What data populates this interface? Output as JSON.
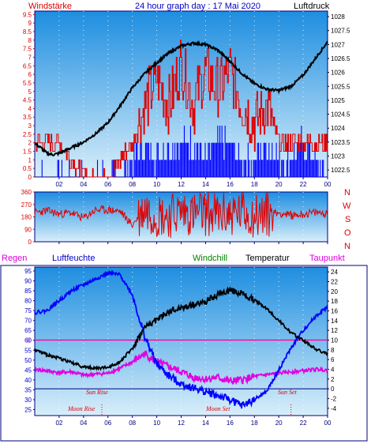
{
  "header": {
    "left_label": "Windstärke",
    "title": "24 hour graph day : 17 Mai 2020",
    "right_label": "Luftdruck"
  },
  "compass": [
    "N",
    "W",
    "S",
    "O",
    "N"
  ],
  "bottom_header": {
    "regen": "Regen",
    "luftfeuchte": "Luftfeuchte",
    "windchill": "Windchill",
    "temperatur": "Temperatur",
    "taupunkt": "Taupunkt"
  },
  "annotations": {
    "sun_rise": "Sun Rise",
    "sun_set": "Sun Set",
    "moon_rise": "Moon Rise",
    "moon_set": "Moon Set"
  },
  "chart_data": [
    {
      "type": "line",
      "x_ticks": [
        "02",
        "04",
        "06",
        "08",
        "10",
        "12",
        "14",
        "16",
        "18",
        "20",
        "22",
        "00"
      ],
      "left_axis": {
        "ticks": [
          "0",
          "0.5",
          "1",
          "1.5",
          "2",
          "2.5",
          "3",
          "3.5",
          "4",
          "4.5",
          "5",
          "5.5",
          "6",
          "6.5",
          "7",
          "7.5",
          "8",
          "8.5",
          "9",
          "9.5"
        ],
        "ylim": [
          0,
          9.7
        ]
      },
      "right_axis": {
        "ticks": [
          "1022.5",
          "1023",
          "1023.5",
          "1024",
          "1024.5",
          "1025",
          "1025.5",
          "1026",
          "1026.5",
          "1027",
          "1027.5",
          "1028"
        ],
        "ylim": [
          1022.25,
          1028.2
        ]
      },
      "series": [
        {
          "color": "#000000",
          "axis": "right",
          "x": [
            0,
            0.5,
            1,
            1.5,
            2,
            3,
            4,
            5,
            6,
            7,
            8,
            9,
            10,
            11,
            12,
            13,
            14,
            15,
            16,
            17,
            18,
            19,
            20,
            21,
            22,
            23,
            24
          ],
          "values": [
            1023.45,
            1023.3,
            1023.1,
            1023.05,
            1023.1,
            1023.3,
            1023.5,
            1023.8,
            1024.2,
            1024.8,
            1025.45,
            1025.95,
            1026.35,
            1026.7,
            1026.95,
            1027.05,
            1027.0,
            1026.8,
            1026.4,
            1025.95,
            1025.6,
            1025.4,
            1025.35,
            1025.5,
            1025.9,
            1026.5,
            1027.1
          ]
        },
        {
          "color": "#e00000",
          "axis": "left",
          "x": [
            0,
            2,
            4,
            6,
            8,
            9,
            10,
            11,
            12,
            13,
            14,
            15,
            16,
            17,
            18,
            19,
            20,
            21,
            22,
            23,
            24
          ],
          "values": [
            2,
            2,
            0,
            0,
            2,
            4,
            5.5,
            4,
            6.5,
            4,
            6,
            5,
            6,
            4,
            3,
            4,
            2,
            2,
            2,
            2,
            2
          ]
        },
        {
          "color": "#0000ff",
          "axis": "left",
          "x": [
            0,
            7,
            8,
            9,
            10,
            11,
            12,
            13,
            14,
            15,
            16,
            17,
            18,
            19,
            20,
            21,
            22,
            23,
            24
          ],
          "values": [
            0,
            0,
            1,
            2,
            1,
            2,
            2,
            2,
            1,
            2,
            2,
            1,
            1,
            2,
            1,
            1,
            2,
            1,
            0
          ]
        }
      ]
    },
    {
      "type": "line",
      "x_ticks": [
        "02",
        "04",
        "06",
        "08",
        "10",
        "12",
        "14",
        "16",
        "18",
        "20",
        "22",
        "00"
      ],
      "left_axis": {
        "ticks": [
          "0",
          "90",
          "180",
          "270",
          "360"
        ],
        "ylim": [
          0,
          360
        ]
      },
      "series": [
        {
          "color": "#e00000",
          "x": [
            0,
            1,
            2,
            3,
            4,
            5,
            6,
            7,
            8,
            9,
            10,
            11,
            12,
            13,
            14,
            15,
            16,
            17,
            18,
            19,
            20,
            21,
            22,
            23,
            24
          ],
          "values": [
            210,
            225,
            200,
            210,
            170,
            230,
            230,
            220,
            120,
            240,
            200,
            190,
            220,
            200,
            210,
            190,
            200,
            215,
            190,
            200,
            210,
            190,
            200,
            210,
            205
          ]
        }
      ]
    },
    {
      "type": "line",
      "x_ticks": [
        "02",
        "04",
        "06",
        "08",
        "10",
        "12",
        "14",
        "16",
        "18",
        "20",
        "22",
        "00"
      ],
      "left_axis": {
        "ticks": [
          "25",
          "30",
          "35",
          "40",
          "45",
          "50",
          "55",
          "60",
          "65",
          "70",
          "75",
          "80",
          "85",
          "90",
          "95"
        ],
        "ylim": [
          22,
          97
        ]
      },
      "right_axis": {
        "ticks": [
          "-4",
          "-2",
          "0",
          "2",
          "4",
          "6",
          "8",
          "10",
          "12",
          "14",
          "16",
          "18",
          "20",
          "22",
          "24"
        ],
        "ylim": [
          -5.5,
          25
        ]
      },
      "rain_marker": "0",
      "series": [
        {
          "color": "#0000ff",
          "axis": "left",
          "x": [
            0,
            1,
            2,
            3,
            4,
            5,
            6,
            7,
            8,
            9,
            10,
            11,
            12,
            13,
            14,
            15,
            16,
            17,
            18,
            19,
            20,
            21,
            22,
            23,
            24
          ],
          "values": [
            74,
            75,
            80,
            85,
            88,
            91,
            94,
            93,
            83,
            62,
            48,
            42,
            38,
            36,
            34,
            32,
            30,
            27,
            30,
            34,
            45,
            56,
            65,
            72,
            77
          ]
        },
        {
          "color": "#000000",
          "axis": "right",
          "x": [
            0,
            1,
            2,
            3,
            4,
            5,
            6,
            7,
            8,
            9,
            10,
            11,
            12,
            13,
            14,
            15,
            16,
            17,
            18,
            19,
            20,
            21,
            22,
            23,
            24
          ],
          "values": [
            8,
            7,
            6.3,
            5.4,
            4.5,
            4.2,
            4.4,
            5.6,
            8.3,
            12.5,
            14.2,
            15.8,
            16.6,
            17.2,
            17.9,
            19.3,
            20.3,
            19.5,
            18.2,
            16.5,
            14,
            11.5,
            10,
            8.2,
            7.1
          ]
        },
        {
          "color": "#e000e0",
          "axis": "right",
          "x": [
            0,
            1,
            2,
            3,
            4,
            5,
            6,
            7,
            8,
            9,
            10,
            11,
            12,
            13,
            14,
            15,
            16,
            17,
            18,
            19,
            20,
            21,
            22,
            23,
            24
          ],
          "values": [
            4,
            3.7,
            3.3,
            3.5,
            2.8,
            3,
            3.2,
            4.2,
            5.5,
            7.2,
            5.5,
            4.5,
            3.5,
            2.3,
            2,
            2.3,
            1.5,
            1.8,
            2.5,
            2.9,
            3.2,
            3.5,
            3.7,
            4,
            3.9
          ]
        },
        {
          "color": "#008000",
          "axis": "right",
          "x": [
            0,
            24
          ],
          "values": [
            4,
            3.9
          ]
        }
      ]
    }
  ],
  "colors": {
    "plot_top": "#1e8ee0",
    "plot_bottom": "#d8eefa",
    "frame": "#000080",
    "pink_line": "#ff00a0"
  }
}
